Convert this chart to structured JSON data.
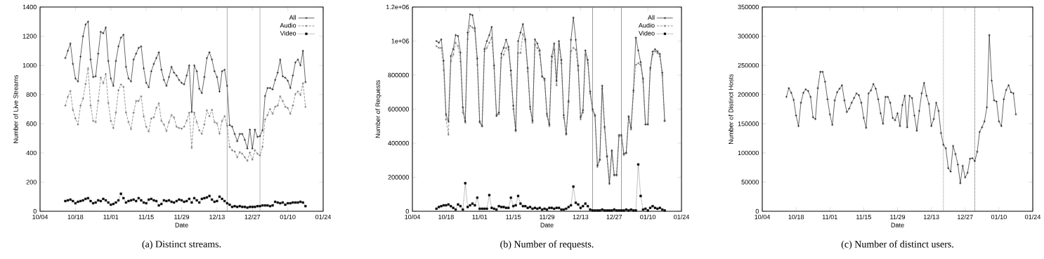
{
  "chart_data": [
    {
      "type": "line",
      "title": "(a) Distinct streams.",
      "xlabel": "Date",
      "ylabel": "Number of Live Streams",
      "legend": "top right",
      "xlim": [
        "2000-10-04",
        "2001-01-24"
      ],
      "ylim": [
        0,
        1400
      ],
      "xticks": [
        {
          "value": "2000-10-04",
          "label": "10/04"
        },
        {
          "value": "2000-10-18",
          "label": "10/18"
        },
        {
          "value": "2000-11-01",
          "label": "11/01"
        },
        {
          "value": "2000-11-15",
          "label": "11/15"
        },
        {
          "value": "2000-11-29",
          "label": "11/29"
        },
        {
          "value": "2000-12-13",
          "label": "12/13"
        },
        {
          "value": "2000-12-27",
          "label": "12/27"
        },
        {
          "value": "2001-01-10",
          "label": "01/10"
        },
        {
          "value": "2001-01-24",
          "label": "01/24"
        }
      ],
      "yticks": [
        0,
        200,
        400,
        600,
        800,
        1000,
        1200,
        1400
      ],
      "ref_lines": [
        {
          "axis": "x",
          "value": "2000-12-17",
          "color": "#808080",
          "line_style": "solid"
        },
        {
          "axis": "x",
          "value": "2000-12-30",
          "color": "#808080",
          "line_style": "solid"
        }
      ],
      "x": [
        "2000-10-14",
        "2000-10-15",
        "2000-10-16",
        "2000-10-17",
        "2000-10-18",
        "2000-10-19",
        "2000-10-20",
        "2000-10-21",
        "2000-10-22",
        "2000-10-23",
        "2000-10-24",
        "2000-10-25",
        "2000-10-26",
        "2000-10-27",
        "2000-10-28",
        "2000-10-29",
        "2000-10-30",
        "2000-10-31",
        "2000-11-01",
        "2000-11-02",
        "2000-11-03",
        "2000-11-04",
        "2000-11-05",
        "2000-11-06",
        "2000-11-07",
        "2000-11-08",
        "2000-11-09",
        "2000-11-10",
        "2000-11-11",
        "2000-11-12",
        "2000-11-13",
        "2000-11-14",
        "2000-11-15",
        "2000-11-16",
        "2000-11-17",
        "2000-11-18",
        "2000-11-19",
        "2000-11-20",
        "2000-11-21",
        "2000-11-22",
        "2000-11-23",
        "2000-11-24",
        "2000-11-25",
        "2000-11-26",
        "2000-11-27",
        "2000-11-28",
        "2000-11-29",
        "2000-11-30",
        "2000-12-01",
        "2000-12-02",
        "2000-12-03",
        "2000-12-04",
        "2000-12-05",
        "2000-12-06",
        "2000-12-07",
        "2000-12-08",
        "2000-12-09",
        "2000-12-10",
        "2000-12-11",
        "2000-12-12",
        "2000-12-13",
        "2000-12-14",
        "2000-12-15",
        "2000-12-16",
        "2000-12-17",
        "2000-12-18",
        "2000-12-19",
        "2000-12-20",
        "2000-12-21",
        "2000-12-22",
        "2000-12-23",
        "2000-12-24",
        "2000-12-25",
        "2000-12-26",
        "2000-12-27",
        "2000-12-28",
        "2000-12-29",
        "2000-12-30",
        "2000-12-31",
        "2001-01-01",
        "2001-01-02",
        "2001-01-03",
        "2001-01-04",
        "2001-01-05",
        "2001-01-06",
        "2001-01-07",
        "2001-01-08",
        "2001-01-09",
        "2001-01-10",
        "2001-01-11",
        "2001-01-12",
        "2001-01-13",
        "2001-01-14",
        "2001-01-15",
        "2001-01-16",
        "2001-01-17"
      ],
      "series": [
        {
          "name": "All",
          "color": "#000000",
          "marker": "cross",
          "line_style": "solid",
          "values": [
            1050,
            1100,
            1150,
            1010,
            910,
            890,
            1060,
            1200,
            1280,
            1300,
            1040,
            920,
            925,
            1080,
            1230,
            1220,
            1260,
            1030,
            910,
            860,
            1030,
            1130,
            1190,
            1210,
            990,
            910,
            890,
            1040,
            1080,
            1120,
            1130,
            980,
            880,
            850,
            960,
            1010,
            1050,
            1090,
            970,
            900,
            860,
            920,
            990,
            950,
            930,
            900,
            880,
            870,
            930,
            1000,
            680,
            1000,
            960,
            840,
            810,
            920,
            1050,
            1090,
            1040,
            960,
            920,
            820,
            960,
            970,
            860,
            590,
            580,
            530,
            480,
            530,
            530,
            490,
            430,
            560,
            430,
            560,
            510,
            515,
            555,
            790,
            845,
            845,
            835,
            900,
            950,
            1040,
            925,
            915,
            895,
            845,
            930,
            1020,
            1040,
            1000,
            1100,
            885
          ]
        },
        {
          "name": "Audio",
          "color": "#555555",
          "marker": "cross",
          "line_style": "dashed",
          "values": [
            724,
            785,
            824,
            695,
            636,
            595,
            724,
            772,
            872,
            980,
            724,
            620,
            611,
            756,
            917,
            877,
            941,
            743,
            620,
            571,
            676,
            829,
            869,
            853,
            676,
            611,
            563,
            676,
            756,
            756,
            788,
            652,
            579,
            547,
            636,
            644,
            708,
            740,
            620,
            595,
            550,
            611,
            660,
            644,
            579,
            571,
            566,
            580,
            620,
            676,
            434,
            676,
            611,
            555,
            531,
            595,
            692,
            652,
            695,
            611,
            603,
            531,
            620,
            652,
            587,
            442,
            418,
            410,
            370,
            405,
            394,
            370,
            346,
            402,
            354,
            418,
            394,
            383,
            442,
            628,
            660,
            700,
            668,
            716,
            724,
            788,
            756,
            716,
            708,
            668,
            724,
            804,
            821,
            797,
            877,
            716
          ]
        },
        {
          "name": "Video",
          "color": "#000000",
          "marker": "square",
          "line_style": "dotted",
          "values": [
            70,
            75,
            80,
            70,
            55,
            65,
            70,
            75,
            85,
            90,
            70,
            55,
            60,
            75,
            70,
            85,
            75,
            60,
            45,
            50,
            60,
            75,
            120,
            90,
            60,
            70,
            75,
            80,
            70,
            90,
            75,
            60,
            55,
            80,
            85,
            75,
            70,
            40,
            50,
            75,
            70,
            75,
            65,
            60,
            70,
            80,
            75,
            65,
            70,
            85,
            60,
            90,
            75,
            60,
            85,
            90,
            95,
            105,
            80,
            65,
            70,
            100,
            85,
            70,
            55,
            45,
            30,
            35,
            30,
            35,
            30,
            30,
            25,
            30,
            30,
            30,
            35,
            35,
            40,
            40,
            40,
            35,
            40,
            65,
            60,
            55,
            60,
            45,
            55,
            55,
            60,
            60,
            60,
            65,
            60,
            35
          ]
        }
      ]
    },
    {
      "type": "line",
      "title": "(b) Number of requests.",
      "xlabel": "Date",
      "ylabel": "Number of Requests",
      "legend": "top right",
      "xlim": [
        "2000-10-04",
        "2001-01-24"
      ],
      "ylim": [
        0,
        1200000
      ],
      "xticks": [
        {
          "value": "2000-10-04",
          "label": "10/04"
        },
        {
          "value": "2000-10-18",
          "label": "10/18"
        },
        {
          "value": "2000-11-01",
          "label": "11/01"
        },
        {
          "value": "2000-11-15",
          "label": "11/15"
        },
        {
          "value": "2000-11-29",
          "label": "11/29"
        },
        {
          "value": "2000-12-13",
          "label": "12/13"
        },
        {
          "value": "2000-12-27",
          "label": "12/27"
        },
        {
          "value": "2001-01-10",
          "label": "01/10"
        },
        {
          "value": "2001-01-24",
          "label": "01/24"
        }
      ],
      "yticks": [
        0,
        200000,
        400000,
        600000,
        800000,
        {
          "value": 1000000,
          "label": "1e+06"
        },
        {
          "value": 1200000,
          "label": "1.2e+06"
        }
      ],
      "ref_lines": [
        {
          "axis": "x",
          "value": "2000-12-18",
          "color": "#808080",
          "line_style": "solid"
        },
        {
          "axis": "x",
          "value": "2000-12-30",
          "color": "#808080",
          "line_style": "solid"
        }
      ],
      "x": [
        "2000-10-14",
        "2000-10-15",
        "2000-10-16",
        "2000-10-17",
        "2000-10-18",
        "2000-10-19",
        "2000-10-20",
        "2000-10-21",
        "2000-10-22",
        "2000-10-23",
        "2000-10-24",
        "2000-10-25",
        "2000-10-26",
        "2000-10-27",
        "2000-10-28",
        "2000-10-29",
        "2000-10-30",
        "2000-10-31",
        "2000-11-01",
        "2000-11-02",
        "2000-11-03",
        "2000-11-04",
        "2000-11-05",
        "2000-11-06",
        "2000-11-07",
        "2000-11-08",
        "2000-11-09",
        "2000-11-10",
        "2000-11-11",
        "2000-11-12",
        "2000-11-13",
        "2000-11-14",
        "2000-11-15",
        "2000-11-16",
        "2000-11-17",
        "2000-11-18",
        "2000-11-19",
        "2000-11-20",
        "2000-11-21",
        "2000-11-22",
        "2000-11-23",
        "2000-11-24",
        "2000-11-25",
        "2000-11-26",
        "2000-11-27",
        "2000-11-28",
        "2000-11-29",
        "2000-11-30",
        "2000-12-01",
        "2000-12-02",
        "2000-12-03",
        "2000-12-04",
        "2000-12-05",
        "2000-12-06",
        "2000-12-07",
        "2000-12-08",
        "2000-12-09",
        "2000-12-10",
        "2000-12-11",
        "2000-12-12",
        "2000-12-13",
        "2000-12-14",
        "2000-12-15",
        "2000-12-16",
        "2000-12-17",
        "2000-12-18",
        "2000-12-19",
        "2000-12-20",
        "2000-12-21",
        "2000-12-22",
        "2000-12-23",
        "2000-12-24",
        "2000-12-25",
        "2000-12-26",
        "2000-12-27",
        "2000-12-28",
        "2000-12-29",
        "2000-12-30",
        "2000-12-31",
        "2001-01-01",
        "2001-01-02",
        "2001-01-03",
        "2001-01-04",
        "2001-01-05",
        "2001-01-06",
        "2001-01-07",
        "2001-01-08",
        "2001-01-09",
        "2001-01-10",
        "2001-01-11",
        "2001-01-12",
        "2001-01-13",
        "2001-01-14",
        "2001-01-15",
        "2001-01-16",
        "2001-01-17"
      ],
      "series": [
        {
          "name": "All",
          "color": "#000000",
          "marker": "cross",
          "line_style": "solid",
          "values": [
            1000000,
            990000,
            1010000,
            884000,
            569000,
            528000,
            912000,
            953000,
            1035000,
            1030000,
            932000,
            610000,
            528000,
            1049000,
            1158000,
            1152000,
            1076000,
            898000,
            528000,
            500000,
            953000,
            1000000,
            1035000,
            1083000,
            857000,
            560000,
            580000,
            925000,
            960000,
            1008000,
            965000,
            827000,
            620000,
            476000,
            1000000,
            1050000,
            1100000,
            1010000,
            841000,
            614000,
            531000,
            1010000,
            986000,
            945000,
            793000,
            779000,
            572000,
            510000,
            910000,
            986000,
            765000,
            1000000,
            889000,
            565000,
            455000,
            648000,
            1007000,
            1138000,
            1007000,
            855000,
            552000,
            593000,
            945000,
            889000,
            703000,
            600000,
            565000,
            269000,
            303000,
            738000,
            496000,
            324000,
            165000,
            358000,
            214000,
            214000,
            448000,
            448000,
            338000,
            345000,
            558000,
            490000,
            710000,
            1020000,
            945000,
            876000,
            779000,
            510000,
            510000,
            841000,
            938000,
            952000,
            940000,
            924000,
            814000,
            531000
          ]
        },
        {
          "name": "Audio",
          "color": "#555555",
          "marker": "cross",
          "line_style": "dashed",
          "values": [
            970000,
            960000,
            960000,
            830000,
            540000,
            450000,
            880000,
            920000,
            990000,
            970000,
            880000,
            580000,
            520000,
            1010000,
            1090000,
            1080000,
            1060000,
            860000,
            520000,
            500000,
            940000,
            960000,
            990000,
            1020000,
            840000,
            570000,
            570000,
            900000,
            920000,
            960000,
            950000,
            800000,
            600000,
            470000,
            930000,
            930000,
            1040000,
            1000000,
            820000,
            600000,
            520000,
            980000,
            960000,
            920000,
            790000,
            770000,
            560000,
            500000,
            880000,
            950000,
            740000,
            980000,
            870000,
            550000,
            450000,
            640000,
            940000,
            960000,
            950000,
            830000,
            540000,
            580000,
            920000,
            870000,
            690000,
            590000,
            560000,
            260000,
            300000,
            720000,
            490000,
            320000,
            160000,
            350000,
            210000,
            210000,
            440000,
            440000,
            330000,
            340000,
            550000,
            480000,
            700000,
            860000,
            870000,
            860000,
            760000,
            510000,
            510000,
            830000,
            920000,
            940000,
            930000,
            910000,
            800000,
            530000
          ]
        },
        {
          "name": "Video",
          "color": "#000000",
          "marker": "square",
          "line_style": "dotted",
          "values": [
            15000,
            25000,
            30000,
            35000,
            35000,
            40000,
            30000,
            20000,
            10000,
            40000,
            30000,
            10000,
            165000,
            25000,
            35000,
            45000,
            35000,
            80000,
            15000,
            15000,
            15000,
            15000,
            95000,
            20000,
            15000,
            10000,
            30000,
            25000,
            25000,
            20000,
            20000,
            80000,
            30000,
            35000,
            90000,
            45000,
            30000,
            30000,
            20000,
            25000,
            15000,
            20000,
            15000,
            20000,
            10000,
            15000,
            10000,
            20000,
            20000,
            15000,
            20000,
            20000,
            10000,
            10000,
            15000,
            25000,
            35000,
            145000,
            50000,
            40000,
            20000,
            30000,
            45000,
            30000,
            10000,
            5000,
            5000,
            5000,
            5000,
            10000,
            5000,
            5000,
            5000,
            5000,
            10000,
            5000,
            5000,
            5000,
            5000,
            10000,
            5000,
            10000,
            5000,
            5000,
            275000,
            90000,
            10000,
            15000,
            5000,
            20000,
            30000,
            20000,
            15000,
            20000,
            10000,
            5000
          ]
        }
      ]
    },
    {
      "type": "line",
      "title": "(c) Number of distinct users.",
      "xlabel": "Date",
      "ylabel": "Number of Distinct Hosts",
      "marker": "cross",
      "line_style": "solid",
      "color": "#000000",
      "xlim": [
        "2000-10-04",
        "2001-01-24"
      ],
      "ylim": [
        0,
        350000
      ],
      "xticks": [
        {
          "value": "2000-10-04",
          "label": "10/04"
        },
        {
          "value": "2000-10-18",
          "label": "10/18"
        },
        {
          "value": "2000-11-01",
          "label": "11/01"
        },
        {
          "value": "2000-11-15",
          "label": "11/15"
        },
        {
          "value": "2000-11-29",
          "label": "11/29"
        },
        {
          "value": "2000-12-13",
          "label": "12/13"
        },
        {
          "value": "2000-12-27",
          "label": "12/27"
        },
        {
          "value": "2001-01-10",
          "label": "01/10"
        },
        {
          "value": "2001-01-24",
          "label": "01/24"
        }
      ],
      "yticks": [
        0,
        50000,
        100000,
        150000,
        200000,
        250000,
        300000,
        350000
      ],
      "ref_lines": [
        {
          "axis": "x",
          "value": "2000-12-18",
          "color": "#000000",
          "line_style": "dotted"
        },
        {
          "axis": "x",
          "value": "2000-12-31",
          "color": "#000000",
          "line_style": "dotted"
        }
      ],
      "x": [
        "2000-10-14",
        "2000-10-15",
        "2000-10-16",
        "2000-10-17",
        "2000-10-18",
        "2000-10-19",
        "2000-10-20",
        "2000-10-21",
        "2000-10-22",
        "2000-10-23",
        "2000-10-24",
        "2000-10-25",
        "2000-10-26",
        "2000-10-27",
        "2000-10-28",
        "2000-10-29",
        "2000-10-30",
        "2000-10-31",
        "2000-11-01",
        "2000-11-02",
        "2000-11-03",
        "2000-11-04",
        "2000-11-05",
        "2000-11-06",
        "2000-11-07",
        "2000-11-08",
        "2000-11-09",
        "2000-11-10",
        "2000-11-11",
        "2000-11-12",
        "2000-11-13",
        "2000-11-14",
        "2000-11-15",
        "2000-11-16",
        "2000-11-17",
        "2000-11-18",
        "2000-11-19",
        "2000-11-20",
        "2000-11-21",
        "2000-11-22",
        "2000-11-23",
        "2000-11-24",
        "2000-11-25",
        "2000-11-26",
        "2000-11-27",
        "2000-11-28",
        "2000-11-29",
        "2000-11-30",
        "2000-12-01",
        "2000-12-02",
        "2000-12-03",
        "2000-12-04",
        "2000-12-05",
        "2000-12-06",
        "2000-12-07",
        "2000-12-08",
        "2000-12-09",
        "2000-12-10",
        "2000-12-11",
        "2000-12-12",
        "2000-12-13",
        "2000-12-14",
        "2000-12-15",
        "2000-12-16",
        "2000-12-17",
        "2000-12-18",
        "2000-12-19",
        "2000-12-20",
        "2000-12-21",
        "2000-12-22",
        "2000-12-23",
        "2000-12-24",
        "2000-12-25",
        "2000-12-26",
        "2000-12-27",
        "2000-12-28",
        "2000-12-29",
        "2000-12-30",
        "2000-12-31",
        "2001-01-01",
        "2001-01-02",
        "2001-01-03",
        "2001-01-04",
        "2001-01-05",
        "2001-01-06",
        "2001-01-07",
        "2001-01-08",
        "2001-01-09",
        "2001-01-10",
        "2001-01-11",
        "2001-01-12",
        "2001-01-13",
        "2001-01-14",
        "2001-01-15",
        "2001-01-16",
        "2001-01-17"
      ],
      "values": [
        196000,
        211000,
        203000,
        191000,
        164000,
        146000,
        186000,
        203000,
        209000,
        206000,
        196000,
        161000,
        158000,
        211000,
        239000,
        239000,
        222000,
        192000,
        166000,
        148000,
        190000,
        204000,
        210000,
        216000,
        190000,
        170000,
        176000,
        186000,
        194000,
        202000,
        199000,
        186000,
        160000,
        143000,
        202000,
        207000,
        218000,
        210000,
        192000,
        168000,
        150000,
        196000,
        196000,
        186000,
        160000,
        156000,
        168000,
        146000,
        182000,
        198000,
        144000,
        198000,
        194000,
        164000,
        138000,
        172000,
        202000,
        220000,
        198000,
        184000,
        146000,
        158000,
        186000,
        172000,
        134000,
        114000,
        108000,
        74000,
        68000,
        112000,
        98000,
        80000,
        48000,
        78000,
        58000,
        66000,
        90000,
        91000,
        86000,
        102000,
        136000,
        144000,
        154000,
        178000,
        302000,
        224000,
        190000,
        188000,
        154000,
        146000,
        192000,
        208000,
        216000,
        204000,
        202000,
        166000
      ]
    }
  ]
}
